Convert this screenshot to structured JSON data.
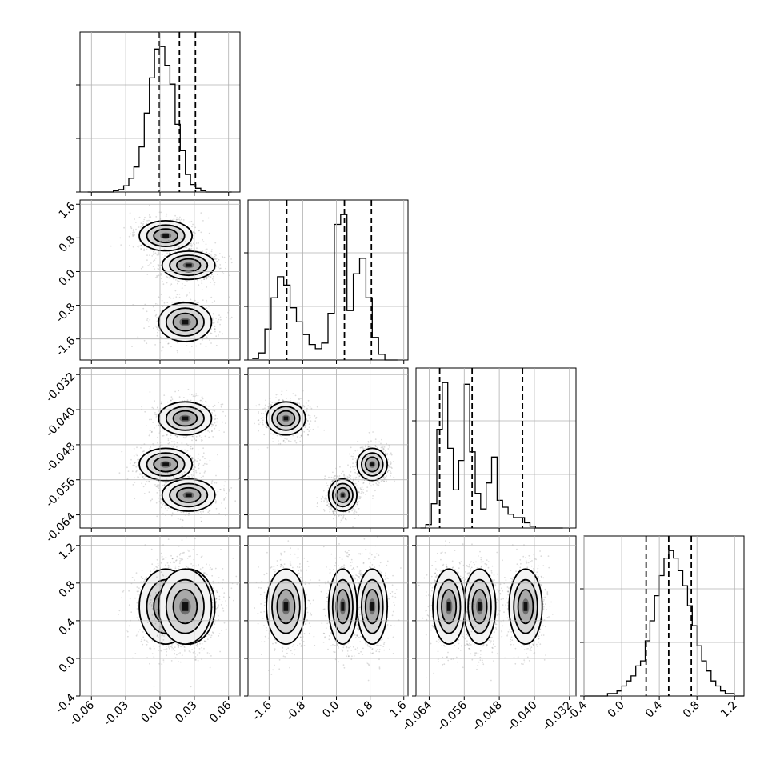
{
  "chart_data": {
    "type": "corner",
    "colors": {
      "line": "#000000",
      "grid": "#b0b0b0",
      "scatter": "#000000"
    },
    "grid": true,
    "parameters": [
      {
        "index": 0,
        "range": [
          -0.07,
          0.07
        ]
      },
      {
        "index": 1,
        "range": [
          -2.1,
          1.7
        ]
      },
      {
        "index": 2,
        "range": [
          -0.067,
          -0.0305
        ]
      },
      {
        "index": 3,
        "range": [
          -0.4,
          1.3
        ]
      }
    ],
    "ticks": [
      [
        "-0.06",
        "-0.03",
        "0.00",
        "0.03",
        "0.06"
      ],
      [
        "-1.6",
        "-0.8",
        "0.0",
        "0.8",
        "1.6"
      ],
      [
        "-0.064",
        "-0.056",
        "-0.048",
        "-0.040",
        "-0.032"
      ],
      [
        "-0.4",
        "0.0",
        "0.4",
        "0.8",
        "1.2"
      ]
    ],
    "tick_values": [
      [
        -0.06,
        -0.03,
        0.0,
        0.03,
        0.06
      ],
      [
        -1.6,
        -0.8,
        0.0,
        0.8,
        1.6
      ],
      [
        -0.064,
        -0.056,
        -0.048,
        -0.04,
        -0.032
      ],
      [
        -0.4,
        0.0,
        0.4,
        0.8,
        1.2
      ]
    ],
    "histograms": [
      {
        "parameter": 0,
        "bin_edges": [
          -0.0633,
          -0.0588,
          -0.0543,
          -0.0498,
          -0.0453,
          -0.0408,
          -0.0363,
          -0.0318,
          -0.0273,
          -0.0228,
          -0.0183,
          -0.0138,
          -0.0093,
          -0.0048,
          -0.0003,
          0.0042,
          0.0087,
          0.0132,
          0.0177,
          0.0222,
          0.0267,
          0.0312,
          0.0357,
          0.0402,
          0.0447,
          0.0492,
          0.0537,
          0.0582,
          0.0627
        ],
        "counts": [
          0,
          0,
          0,
          0,
          0,
          1,
          2,
          5,
          11,
          20,
          36,
          63,
          91,
          114,
          116,
          101,
          86,
          54,
          33,
          14,
          6,
          3,
          1,
          0,
          0,
          0,
          0,
          0
        ],
        "quantiles": [
          -0.0005,
          0.017,
          0.031
        ]
      },
      {
        "parameter": 1,
        "bin_edges": [
          -2.0,
          -1.85,
          -1.7,
          -1.55,
          -1.4,
          -1.25,
          -1.1,
          -0.95,
          -0.8,
          -0.65,
          -0.5,
          -0.35,
          -0.2,
          -0.05,
          0.1,
          0.25,
          0.4,
          0.55,
          0.7,
          0.85,
          1.0,
          1.15,
          1.3,
          1.45
        ],
        "counts": [
          1,
          5,
          22,
          44,
          59,
          53,
          37,
          27,
          18,
          11,
          8,
          12,
          33,
          96,
          103,
          35,
          61,
          72,
          44,
          16,
          4,
          0,
          0
        ],
        "quantiles": [
          -1.18,
          0.19,
          0.83
        ]
      },
      {
        "parameter": 2,
        "bin_edges": [
          -0.066,
          -0.06475,
          -0.0635,
          -0.06225,
          -0.061,
          -0.05975,
          -0.0585,
          -0.05725,
          -0.056,
          -0.05475,
          -0.0535,
          -0.05225,
          -0.051,
          -0.04975,
          -0.0485,
          -0.04725,
          -0.046,
          -0.04475,
          -0.0435,
          -0.04225,
          -0.041,
          -0.03975,
          -0.0385,
          -0.03725,
          -0.036,
          -0.03475,
          -0.0335
        ],
        "counts": [
          0,
          2,
          14,
          57,
          84,
          46,
          22,
          39,
          83,
          44,
          20,
          11,
          26,
          41,
          16,
          12,
          8,
          6,
          6,
          3,
          1,
          0,
          0,
          0,
          0,
          0
        ],
        "quantiles": [
          -0.0616,
          -0.0542,
          -0.0427
        ]
      },
      {
        "parameter": 3,
        "bin_edges": [
          -0.4,
          -0.35,
          -0.3,
          -0.25,
          -0.2,
          -0.15,
          -0.1,
          -0.05,
          0.0,
          0.05,
          0.1,
          0.15,
          0.2,
          0.25,
          0.3,
          0.35,
          0.4,
          0.45,
          0.5,
          0.55,
          0.6,
          0.65,
          0.7,
          0.75,
          0.8,
          0.85,
          0.9,
          0.95,
          1.0,
          1.05,
          1.1,
          1.15,
          1.2,
          1.25,
          1.3
        ],
        "counts": [
          0,
          0,
          0,
          0,
          0,
          1,
          1,
          2,
          4,
          6,
          8,
          12,
          14,
          22,
          30,
          40,
          48,
          55,
          58,
          55,
          50,
          44,
          36,
          28,
          20,
          14,
          10,
          6,
          4,
          2,
          1,
          1,
          0,
          0
        ],
        "quantiles": [
          0.26,
          0.5,
          0.74
        ]
      }
    ],
    "clusters": [
      {
        "means": [
          0.005,
          0.85,
          -0.0525,
          0.55
        ],
        "sds": [
          0.011,
          0.17,
          0.00175,
          0.19
        ]
      },
      {
        "means": [
          0.025,
          0.15,
          -0.0595,
          0.55
        ],
        "sds": [
          0.011,
          0.16,
          0.00175,
          0.19
        ]
      },
      {
        "means": [
          0.022,
          -1.2,
          -0.042,
          0.55
        ],
        "sds": [
          0.011,
          0.22,
          0.0018,
          0.19
        ]
      }
    ]
  }
}
